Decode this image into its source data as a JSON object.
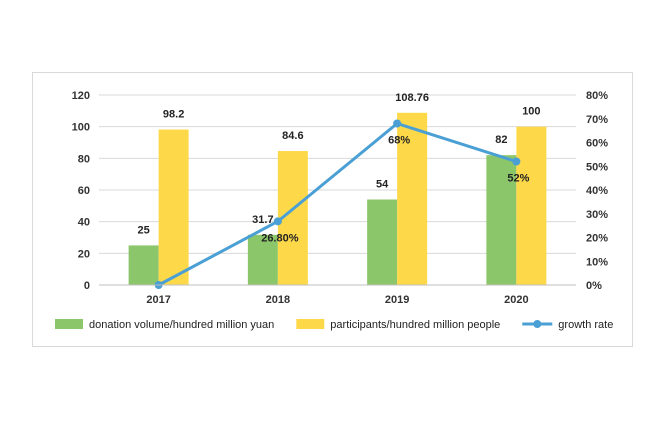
{
  "chart_data": {
    "type": "bar",
    "categories": [
      "2017",
      "2018",
      "2019",
      "2020"
    ],
    "series": [
      {
        "name": "donation volume/hundred million yuan",
        "type": "bar",
        "axis": "left",
        "color": "#8cc66a",
        "values": [
          25,
          31.7,
          54,
          82
        ],
        "labels": [
          "25",
          "31.7",
          "54",
          "82"
        ]
      },
      {
        "name": "participants/hundred million people",
        "type": "bar",
        "axis": "left",
        "color": "#fdd94a",
        "values": [
          98.2,
          84.6,
          108.76,
          100
        ],
        "labels": [
          "98.2",
          "84.6",
          "108.76",
          "100"
        ]
      },
      {
        "name": "growth rate",
        "type": "line",
        "axis": "right",
        "color": "#4a9fd5",
        "values": [
          0,
          26.8,
          68,
          52
        ],
        "labels": [
          "",
          "26.80%",
          "68%",
          "52%"
        ]
      }
    ],
    "yleft": {
      "min": 0,
      "max": 120,
      "ticks": [
        "0",
        "20",
        "40",
        "60",
        "80",
        "100",
        "120"
      ]
    },
    "yright": {
      "min": 0,
      "max": 80,
      "ticks": [
        "0%",
        "10%",
        "20%",
        "30%",
        "40%",
        "50%",
        "60%",
        "70%",
        "80%"
      ]
    },
    "grid": true,
    "legend": "bottom"
  }
}
